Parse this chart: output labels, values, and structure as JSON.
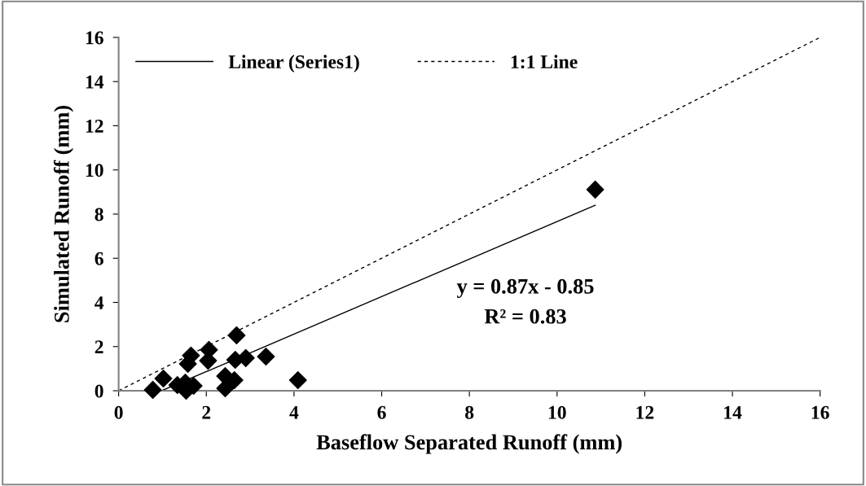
{
  "chart_data": {
    "type": "scatter",
    "xlabel": "Baseflow Separated Runoff (mm)",
    "ylabel": "Simulated Runoff (mm)",
    "xlim": [
      0,
      16
    ],
    "ylim": [
      0,
      16
    ],
    "xticks": [
      0,
      2,
      4,
      6,
      8,
      10,
      12,
      14,
      16
    ],
    "yticks": [
      0,
      2,
      4,
      6,
      8,
      10,
      12,
      14,
      16
    ],
    "grid": false,
    "legend": "top left",
    "marker": "diamond",
    "series": [
      {
        "color": "#000000",
        "x": [
          0.78,
          1.02,
          1.34,
          1.54,
          1.52,
          1.71,
          1.58,
          1.65,
          2.04,
          2.06,
          2.43,
          2.43,
          2.64,
          2.69,
          2.66,
          2.9,
          3.36,
          4.09,
          10.87
        ],
        "values": [
          0.04,
          0.55,
          0.26,
          0.0,
          0.37,
          0.22,
          1.22,
          1.59,
          1.36,
          1.85,
          0.66,
          0.11,
          0.48,
          2.51,
          1.4,
          1.48,
          1.55,
          0.48,
          9.11
        ]
      },
      {
        "type": "line",
        "name": "Linear (Series1)",
        "color": "#000000",
        "line_style": "solid",
        "marker": "none",
        "x": [
          0.98,
          10.87
        ],
        "values": [
          0,
          8.4
        ]
      },
      {
        "type": "line",
        "name": "1:1 Line",
        "color": "#000000",
        "line_style": "dashed",
        "marker": "none",
        "x": [
          0,
          16
        ],
        "values": [
          0,
          16
        ]
      }
    ],
    "annotations": [
      "y = 0.87x - 0.85",
      "R² = 0.83"
    ]
  }
}
